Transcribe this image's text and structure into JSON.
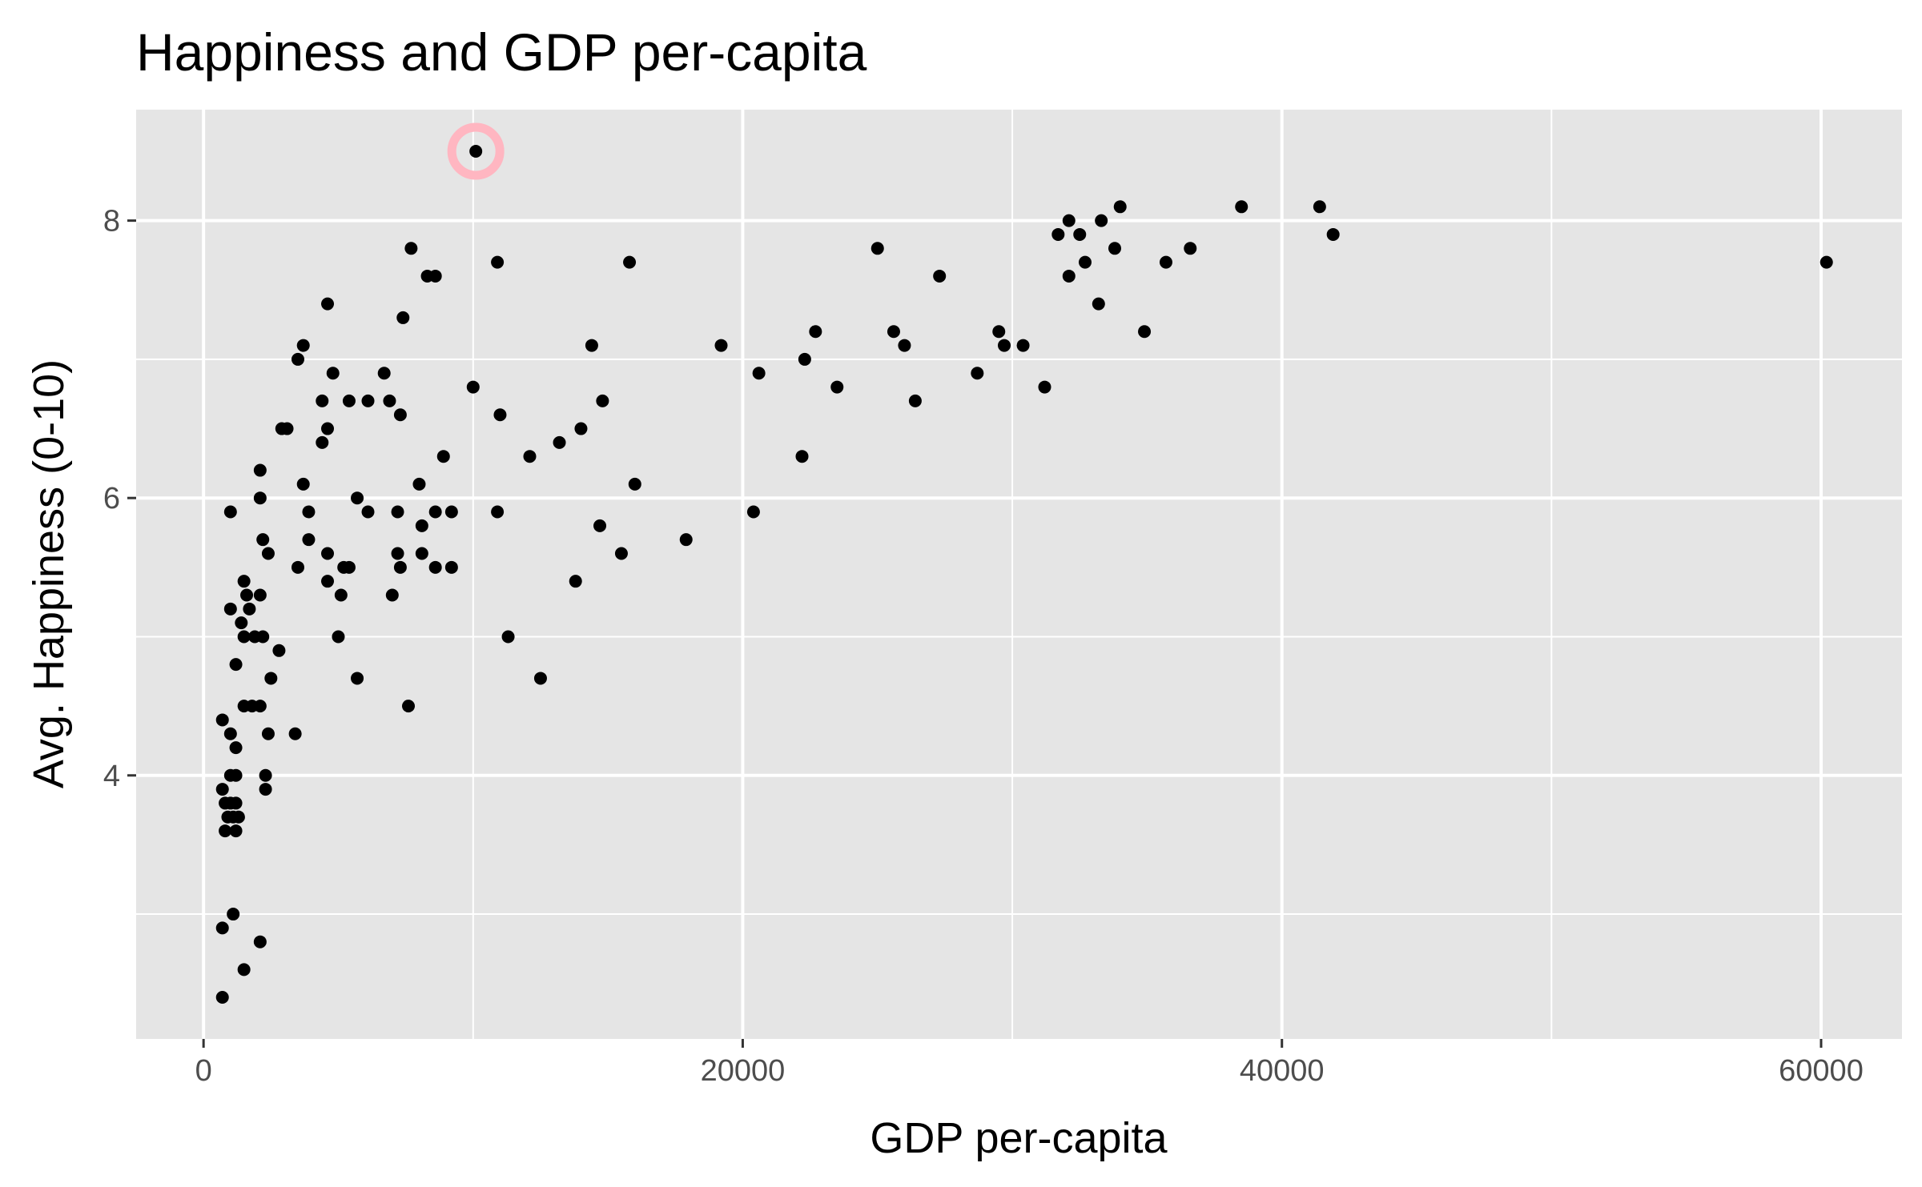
{
  "chart_data": {
    "type": "scatter",
    "title": "Happiness and GDP per-capita",
    "xlabel": "GDP per-capita",
    "ylabel": "Avg. Happiness (0-10)",
    "xlim": [
      -2500,
      63000
    ],
    "ylim": [
      2.1,
      8.8
    ],
    "x_ticks": [
      0,
      20000,
      40000,
      60000
    ],
    "x_tick_labels": [
      "0",
      "20000",
      "40000",
      "60000"
    ],
    "x_minor": [
      10000,
      30000,
      50000
    ],
    "y_ticks": [
      4,
      6,
      8
    ],
    "y_tick_labels": [
      "4",
      "6",
      "8"
    ],
    "y_minor": [
      3,
      5,
      7
    ],
    "grid": true,
    "colors": {
      "panel": "#e5e5e5",
      "grid": "#ffffff",
      "point": "#000000",
      "highlight": "#ffb6c1",
      "tick_text": "#4d4d4d"
    },
    "highlight": {
      "x": 10100,
      "y": 8.5
    },
    "points": [
      {
        "x": 10100,
        "y": 8.5
      },
      {
        "x": 700,
        "y": 2.4
      },
      {
        "x": 1500,
        "y": 2.6
      },
      {
        "x": 700,
        "y": 2.9
      },
      {
        "x": 1100,
        "y": 3.0
      },
      {
        "x": 2100,
        "y": 2.8
      },
      {
        "x": 800,
        "y": 3.6
      },
      {
        "x": 1200,
        "y": 3.6
      },
      {
        "x": 900,
        "y": 3.7
      },
      {
        "x": 1100,
        "y": 3.7
      },
      {
        "x": 1300,
        "y": 3.7
      },
      {
        "x": 800,
        "y": 3.8
      },
      {
        "x": 1000,
        "y": 3.8
      },
      {
        "x": 1200,
        "y": 3.8
      },
      {
        "x": 700,
        "y": 3.9
      },
      {
        "x": 2300,
        "y": 3.9
      },
      {
        "x": 1000,
        "y": 4.0
      },
      {
        "x": 1200,
        "y": 4.0
      },
      {
        "x": 2300,
        "y": 4.0
      },
      {
        "x": 1200,
        "y": 4.2
      },
      {
        "x": 1000,
        "y": 4.3
      },
      {
        "x": 2400,
        "y": 4.3
      },
      {
        "x": 3400,
        "y": 4.3
      },
      {
        "x": 700,
        "y": 4.4
      },
      {
        "x": 1500,
        "y": 4.5
      },
      {
        "x": 1800,
        "y": 4.5
      },
      {
        "x": 2100,
        "y": 4.5
      },
      {
        "x": 7600,
        "y": 4.5
      },
      {
        "x": 2500,
        "y": 4.7
      },
      {
        "x": 5700,
        "y": 4.7
      },
      {
        "x": 12500,
        "y": 4.7
      },
      {
        "x": 1200,
        "y": 4.8
      },
      {
        "x": 2800,
        "y": 4.9
      },
      {
        "x": 1500,
        "y": 5.0
      },
      {
        "x": 1900,
        "y": 5.0
      },
      {
        "x": 2200,
        "y": 5.0
      },
      {
        "x": 5000,
        "y": 5.0
      },
      {
        "x": 11300,
        "y": 5.0
      },
      {
        "x": 1400,
        "y": 5.1
      },
      {
        "x": 1000,
        "y": 5.2
      },
      {
        "x": 1700,
        "y": 5.2
      },
      {
        "x": 1600,
        "y": 5.3
      },
      {
        "x": 2100,
        "y": 5.3
      },
      {
        "x": 5100,
        "y": 5.3
      },
      {
        "x": 7000,
        "y": 5.3
      },
      {
        "x": 1500,
        "y": 5.4
      },
      {
        "x": 4600,
        "y": 5.4
      },
      {
        "x": 13800,
        "y": 5.4
      },
      {
        "x": 3500,
        "y": 5.5
      },
      {
        "x": 5200,
        "y": 5.5
      },
      {
        "x": 5400,
        "y": 5.5
      },
      {
        "x": 7300,
        "y": 5.5
      },
      {
        "x": 8600,
        "y": 5.5
      },
      {
        "x": 9200,
        "y": 5.5
      },
      {
        "x": 2400,
        "y": 5.6
      },
      {
        "x": 4600,
        "y": 5.6
      },
      {
        "x": 7200,
        "y": 5.6
      },
      {
        "x": 8100,
        "y": 5.6
      },
      {
        "x": 15500,
        "y": 5.6
      },
      {
        "x": 2200,
        "y": 5.7
      },
      {
        "x": 3900,
        "y": 5.7
      },
      {
        "x": 17900,
        "y": 5.7
      },
      {
        "x": 8100,
        "y": 5.8
      },
      {
        "x": 14700,
        "y": 5.8
      },
      {
        "x": 1000,
        "y": 5.9
      },
      {
        "x": 3900,
        "y": 5.9
      },
      {
        "x": 6100,
        "y": 5.9
      },
      {
        "x": 7200,
        "y": 5.9
      },
      {
        "x": 8600,
        "y": 5.9
      },
      {
        "x": 9200,
        "y": 5.9
      },
      {
        "x": 10900,
        "y": 5.9
      },
      {
        "x": 20400,
        "y": 5.9
      },
      {
        "x": 2100,
        "y": 6.0
      },
      {
        "x": 5700,
        "y": 6.0
      },
      {
        "x": 3700,
        "y": 6.1
      },
      {
        "x": 8000,
        "y": 6.1
      },
      {
        "x": 16000,
        "y": 6.1
      },
      {
        "x": 2100,
        "y": 6.2
      },
      {
        "x": 8900,
        "y": 6.3
      },
      {
        "x": 12100,
        "y": 6.3
      },
      {
        "x": 22200,
        "y": 6.3
      },
      {
        "x": 4400,
        "y": 6.4
      },
      {
        "x": 13200,
        "y": 6.4
      },
      {
        "x": 2900,
        "y": 6.5
      },
      {
        "x": 3100,
        "y": 6.5
      },
      {
        "x": 4600,
        "y": 6.5
      },
      {
        "x": 14000,
        "y": 6.5
      },
      {
        "x": 7300,
        "y": 6.6
      },
      {
        "x": 11000,
        "y": 6.6
      },
      {
        "x": 4400,
        "y": 6.7
      },
      {
        "x": 5400,
        "y": 6.7
      },
      {
        "x": 6100,
        "y": 6.7
      },
      {
        "x": 6900,
        "y": 6.7
      },
      {
        "x": 14800,
        "y": 6.7
      },
      {
        "x": 26400,
        "y": 6.7
      },
      {
        "x": 10000,
        "y": 6.8
      },
      {
        "x": 23500,
        "y": 6.8
      },
      {
        "x": 31200,
        "y": 6.8
      },
      {
        "x": 4800,
        "y": 6.9
      },
      {
        "x": 6700,
        "y": 6.9
      },
      {
        "x": 20600,
        "y": 6.9
      },
      {
        "x": 28700,
        "y": 6.9
      },
      {
        "x": 3500,
        "y": 7.0
      },
      {
        "x": 22300,
        "y": 7.0
      },
      {
        "x": 3700,
        "y": 7.1
      },
      {
        "x": 14400,
        "y": 7.1
      },
      {
        "x": 19200,
        "y": 7.1
      },
      {
        "x": 26000,
        "y": 7.1
      },
      {
        "x": 29700,
        "y": 7.1
      },
      {
        "x": 30400,
        "y": 7.1
      },
      {
        "x": 22700,
        "y": 7.2
      },
      {
        "x": 25600,
        "y": 7.2
      },
      {
        "x": 29500,
        "y": 7.2
      },
      {
        "x": 34900,
        "y": 7.2
      },
      {
        "x": 7400,
        "y": 7.3
      },
      {
        "x": 4600,
        "y": 7.4
      },
      {
        "x": 33200,
        "y": 7.4
      },
      {
        "x": 8300,
        "y": 7.6
      },
      {
        "x": 8600,
        "y": 7.6
      },
      {
        "x": 27300,
        "y": 7.6
      },
      {
        "x": 32100,
        "y": 7.6
      },
      {
        "x": 10900,
        "y": 7.7
      },
      {
        "x": 15800,
        "y": 7.7
      },
      {
        "x": 32700,
        "y": 7.7
      },
      {
        "x": 35700,
        "y": 7.7
      },
      {
        "x": 60200,
        "y": 7.7
      },
      {
        "x": 7700,
        "y": 7.8
      },
      {
        "x": 25000,
        "y": 7.8
      },
      {
        "x": 33800,
        "y": 7.8
      },
      {
        "x": 36600,
        "y": 7.8
      },
      {
        "x": 31700,
        "y": 7.9
      },
      {
        "x": 32500,
        "y": 7.9
      },
      {
        "x": 41900,
        "y": 7.9
      },
      {
        "x": 32100,
        "y": 8.0
      },
      {
        "x": 33300,
        "y": 8.0
      },
      {
        "x": 34000,
        "y": 8.1
      },
      {
        "x": 38500,
        "y": 8.1
      },
      {
        "x": 41400,
        "y": 8.1
      }
    ]
  }
}
